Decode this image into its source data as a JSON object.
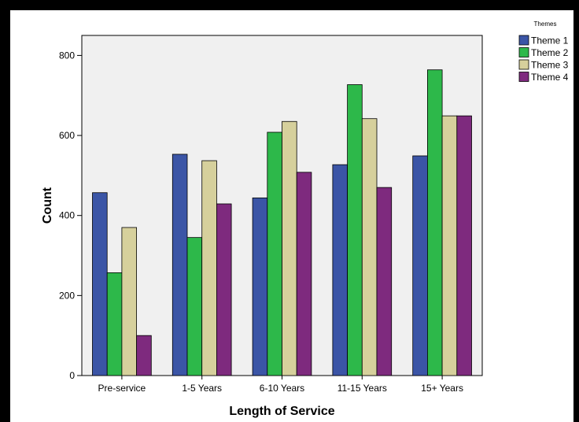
{
  "chart_data": {
    "type": "bar",
    "categories": [
      "Pre-service",
      "1-5 Years",
      "6-10 Years",
      "11-15 Years",
      "15+ Years"
    ],
    "series": [
      {
        "name": "Theme 1",
        "color": "#3B55A6",
        "values": [
          457,
          553,
          444,
          527,
          549
        ]
      },
      {
        "name": "Theme 2",
        "color": "#2DB84A",
        "values": [
          257,
          345,
          608,
          727,
          764
        ]
      },
      {
        "name": "Theme 3",
        "color": "#D6D09C",
        "values": [
          370,
          537,
          635,
          642,
          649
        ]
      },
      {
        "name": "Theme 4",
        "color": "#7E2A7E",
        "values": [
          100,
          429,
          508,
          470,
          649
        ]
      }
    ],
    "title": "",
    "xlabel": "Length of Service",
    "ylabel": "Count",
    "ylim": [
      0,
      850
    ],
    "yticks": [
      0,
      200,
      400,
      600,
      800
    ],
    "grid": false,
    "legend": {
      "title": "Themes",
      "placement": "right-top"
    },
    "plot_background": "#F0F0F0"
  }
}
